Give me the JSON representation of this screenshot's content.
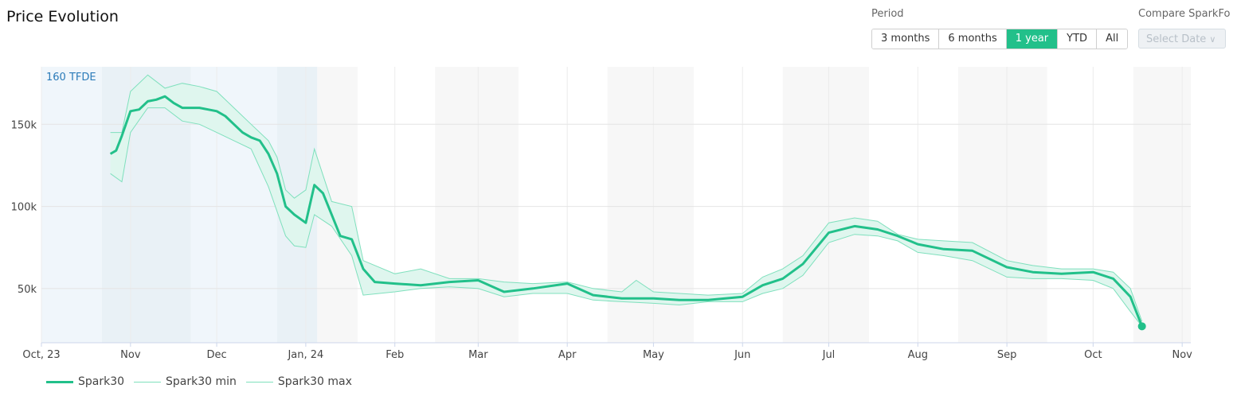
{
  "header": {
    "title": "Price Evolution",
    "period_label": "Period",
    "periods": [
      "3 months",
      "6 months",
      "1 year",
      "YTD",
      "All"
    ],
    "active_period": "1 year",
    "compare_label": "Compare SparkFo",
    "select_date_placeholder": "Select Date"
  },
  "colors": {
    "main": "#22c08a",
    "band_fill": "#dff6ee",
    "band_line": "#7fe0bd",
    "shade_blue": "#f0f6fb",
    "shade_blue_dark": "#e9f1f6",
    "shade_grey": "#f7f7f7",
    "annotation": "#2b7bb9"
  },
  "chart_data": {
    "type": "line",
    "title": "",
    "annotation": "160 TFDE",
    "y_ticks": [
      50000,
      100000,
      150000
    ],
    "y_tick_labels": [
      "50k",
      "100k",
      "150k"
    ],
    "ylim": [
      17000,
      185000
    ],
    "xlim": [
      "2023-10-01",
      "2024-11-04"
    ],
    "x_ticks": [
      "2023-10-01",
      "2023-11-01",
      "2023-12-01",
      "2024-01-01",
      "2024-02-01",
      "2024-03-01",
      "2024-04-01",
      "2024-05-01",
      "2024-06-01",
      "2024-07-01",
      "2024-08-01",
      "2024-09-01",
      "2024-10-01",
      "2024-11-01"
    ],
    "x_tick_labels": [
      "Oct, 23",
      "Nov",
      "Dec",
      "Jan, 24",
      "Feb",
      "Mar",
      "Apr",
      "May",
      "Jun",
      "Jul",
      "Aug",
      "Sep",
      "Oct",
      "Nov"
    ],
    "shaded_regions": [
      {
        "from": "2023-10-01",
        "to": "2023-10-22",
        "style": "blue"
      },
      {
        "from": "2023-10-22",
        "to": "2023-11-22",
        "style": "blue_dark"
      },
      {
        "from": "2023-11-22",
        "to": "2023-12-22",
        "style": "blue"
      },
      {
        "from": "2023-12-22",
        "to": "2024-01-05",
        "style": "blue_dark"
      },
      {
        "from": "2024-01-05",
        "to": "2024-01-19",
        "style": "grey"
      },
      {
        "from": "2024-02-15",
        "to": "2024-03-15",
        "style": "grey"
      },
      {
        "from": "2024-04-15",
        "to": "2024-05-15",
        "style": "grey"
      },
      {
        "from": "2024-06-15",
        "to": "2024-07-15",
        "style": "grey"
      },
      {
        "from": "2024-08-15",
        "to": "2024-09-15",
        "style": "grey"
      },
      {
        "from": "2024-10-15",
        "to": "2024-11-04",
        "style": "grey"
      }
    ],
    "series": [
      {
        "name": "Spark30",
        "x": [
          "2023-10-25",
          "2023-10-27",
          "2023-10-29",
          "2023-11-01",
          "2023-11-04",
          "2023-11-07",
          "2023-11-10",
          "2023-11-13",
          "2023-11-16",
          "2023-11-19",
          "2023-11-22",
          "2023-11-25",
          "2023-11-28",
          "2023-12-01",
          "2023-12-04",
          "2023-12-07",
          "2023-12-10",
          "2023-12-13",
          "2023-12-16",
          "2023-12-19",
          "2023-12-22",
          "2023-12-25",
          "2023-12-28",
          "2024-01-01",
          "2024-01-04",
          "2024-01-07",
          "2024-01-10",
          "2024-01-13",
          "2024-01-17",
          "2024-01-21",
          "2024-01-25",
          "2024-02-01",
          "2024-02-10",
          "2024-02-20",
          "2024-03-01",
          "2024-03-10",
          "2024-03-20",
          "2024-04-01",
          "2024-04-10",
          "2024-04-20",
          "2024-05-01",
          "2024-05-10",
          "2024-05-20",
          "2024-06-01",
          "2024-06-08",
          "2024-06-15",
          "2024-06-22",
          "2024-07-01",
          "2024-07-10",
          "2024-07-18",
          "2024-07-25",
          "2024-08-01",
          "2024-08-10",
          "2024-08-20",
          "2024-09-01",
          "2024-09-10",
          "2024-09-20",
          "2024-10-01",
          "2024-10-08",
          "2024-10-14",
          "2024-10-18"
        ],
        "values": [
          132000,
          134000,
          143000,
          158000,
          159000,
          164000,
          165000,
          167000,
          163000,
          160000,
          160000,
          160000,
          159000,
          158000,
          155000,
          150000,
          145000,
          142000,
          140000,
          132000,
          120000,
          100000,
          95000,
          90000,
          113000,
          108000,
          95000,
          82000,
          80000,
          62000,
          54000,
          53000,
          52000,
          54000,
          55000,
          48000,
          50000,
          53000,
          46000,
          44000,
          44000,
          43000,
          43000,
          45000,
          52000,
          56000,
          65000,
          84000,
          88000,
          86000,
          82000,
          77000,
          74000,
          73000,
          63000,
          60000,
          59000,
          60000,
          56000,
          45000,
          27000
        ]
      },
      {
        "name": "Spark30 min",
        "x": [
          "2023-10-25",
          "2023-10-29",
          "2023-11-01",
          "2023-11-07",
          "2023-11-13",
          "2023-11-19",
          "2023-11-25",
          "2023-12-01",
          "2023-12-07",
          "2023-12-13",
          "2023-12-19",
          "2023-12-25",
          "2023-12-28",
          "2024-01-01",
          "2024-01-04",
          "2024-01-10",
          "2024-01-17",
          "2024-01-21",
          "2024-02-01",
          "2024-02-10",
          "2024-02-20",
          "2024-03-01",
          "2024-03-10",
          "2024-03-20",
          "2024-04-01",
          "2024-04-10",
          "2024-04-20",
          "2024-05-01",
          "2024-05-10",
          "2024-05-20",
          "2024-06-01",
          "2024-06-08",
          "2024-06-15",
          "2024-06-22",
          "2024-07-01",
          "2024-07-10",
          "2024-07-18",
          "2024-07-25",
          "2024-08-01",
          "2024-08-10",
          "2024-08-20",
          "2024-09-01",
          "2024-09-10",
          "2024-09-20",
          "2024-10-01",
          "2024-10-08",
          "2024-10-14",
          "2024-10-18"
        ],
        "values": [
          120000,
          115000,
          145000,
          160000,
          160000,
          152000,
          150000,
          145000,
          140000,
          135000,
          112000,
          82000,
          76000,
          75000,
          95000,
          88000,
          70000,
          46000,
          48000,
          50000,
          51000,
          50000,
          45000,
          47000,
          47000,
          43000,
          42000,
          41000,
          40000,
          42000,
          42000,
          47000,
          50000,
          58000,
          78000,
          83000,
          82000,
          79000,
          72000,
          70000,
          67000,
          57000,
          56000,
          56000,
          55000,
          50000,
          36000,
          27000
        ]
      },
      {
        "name": "Spark30 max",
        "x": [
          "2023-10-25",
          "2023-10-29",
          "2023-11-01",
          "2023-11-07",
          "2023-11-13",
          "2023-11-19",
          "2023-11-25",
          "2023-12-01",
          "2023-12-07",
          "2023-12-13",
          "2023-12-19",
          "2023-12-22",
          "2023-12-25",
          "2023-12-28",
          "2024-01-01",
          "2024-01-04",
          "2024-01-10",
          "2024-01-17",
          "2024-01-21",
          "2024-02-01",
          "2024-02-10",
          "2024-02-20",
          "2024-03-01",
          "2024-03-10",
          "2024-03-20",
          "2024-04-01",
          "2024-04-10",
          "2024-04-20",
          "2024-04-25",
          "2024-05-01",
          "2024-05-10",
          "2024-05-20",
          "2024-06-01",
          "2024-06-08",
          "2024-06-15",
          "2024-06-22",
          "2024-07-01",
          "2024-07-10",
          "2024-07-18",
          "2024-07-25",
          "2024-08-01",
          "2024-08-10",
          "2024-08-20",
          "2024-09-01",
          "2024-09-10",
          "2024-09-20",
          "2024-10-01",
          "2024-10-08",
          "2024-10-14",
          "2024-10-18"
        ],
        "values": [
          145000,
          145000,
          170000,
          180000,
          172000,
          175000,
          173000,
          170000,
          160000,
          150000,
          140000,
          130000,
          110000,
          105000,
          110000,
          135000,
          103000,
          100000,
          67000,
          59000,
          62000,
          56000,
          56000,
          54000,
          53000,
          54000,
          50000,
          48000,
          55000,
          48000,
          47000,
          46000,
          47000,
          57000,
          62000,
          70000,
          90000,
          93000,
          91000,
          83000,
          80000,
          79000,
          78000,
          67000,
          64000,
          62000,
          62000,
          60000,
          50000,
          30000
        ]
      }
    ]
  },
  "legend": {
    "items": [
      "Spark30",
      "Spark30 min",
      "Spark30 max"
    ]
  }
}
